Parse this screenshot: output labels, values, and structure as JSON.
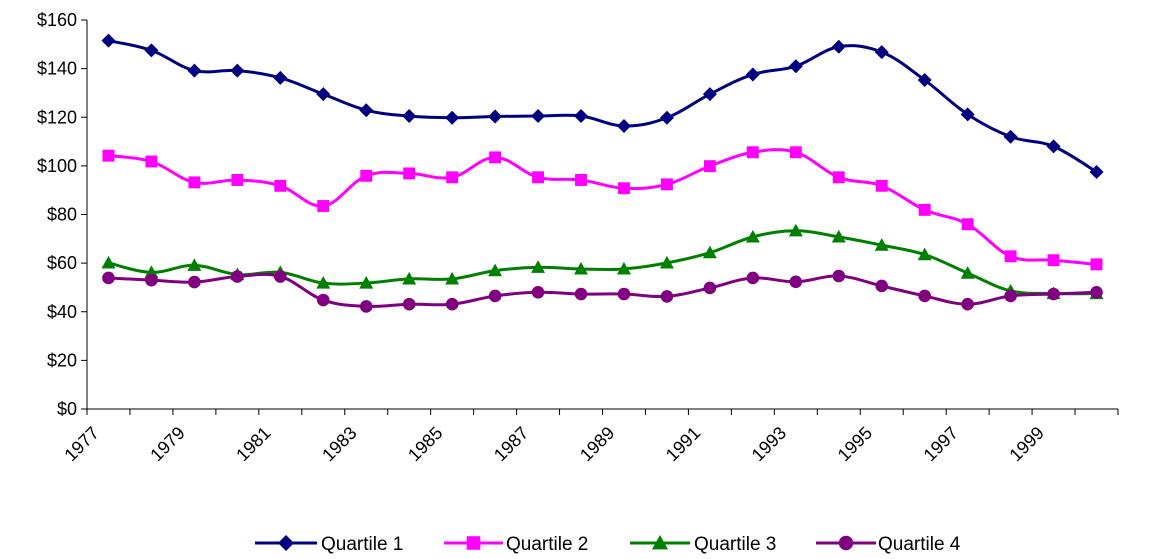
{
  "chart_data": {
    "type": "line",
    "title": "",
    "xlabel": "",
    "ylabel": "",
    "ylim": [
      0,
      160
    ],
    "yticks": [
      "$0",
      "$20",
      "$40",
      "$60",
      "$80",
      "$100",
      "$120",
      "$140",
      "$160"
    ],
    "xticks": [
      "1977",
      "1979",
      "1981",
      "1983",
      "1985",
      "1987",
      "1989",
      "1991",
      "1993",
      "1995",
      "1997",
      "1999"
    ],
    "x": [
      1977,
      1978,
      1979,
      1980,
      1981,
      1982,
      1983,
      1984,
      1985,
      1986,
      1987,
      1988,
      1989,
      1990,
      1991,
      1992,
      1993,
      1994,
      1995,
      1996,
      1997,
      1998,
      1999,
      2000
    ],
    "grid": false,
    "legend_position": "bottom",
    "series": [
      {
        "name": "Quartile 1",
        "color": "#000080",
        "marker": "diamond",
        "values": [
          151.5,
          147.5,
          139.2,
          139.2,
          136.2,
          129.5,
          122.9,
          120.5,
          119.8,
          120.3,
          120.5,
          120.5,
          116.4,
          119.8,
          129.5,
          137.6,
          141.0,
          149.0,
          146.8,
          135.3,
          121.2,
          112.0,
          108.0,
          97.5
        ]
      },
      {
        "name": "Quartile 2",
        "color": "#ff00ff",
        "marker": "square",
        "values": [
          104.2,
          101.8,
          93.2,
          94.2,
          91.8,
          83.5,
          95.9,
          96.9,
          95.3,
          103.5,
          95.3,
          94.2,
          90.8,
          92.4,
          99.9,
          105.6,
          105.6,
          95.3,
          91.8,
          81.9,
          76.0,
          62.8,
          61.2,
          59.5
        ]
      },
      {
        "name": "Quartile 3",
        "color": "#008000",
        "marker": "triangle",
        "values": [
          60.1,
          56.2,
          59.1,
          55.3,
          56.2,
          51.8,
          51.8,
          53.5,
          53.5,
          56.9,
          58.3,
          57.6,
          57.6,
          60.1,
          64.3,
          70.8,
          73.3,
          70.8,
          67.4,
          63.5,
          55.9,
          48.6,
          47.5,
          47.5
        ]
      },
      {
        "name": "Quartile 4",
        "color": "#800080",
        "marker": "circle",
        "values": [
          53.9,
          53.0,
          52.2,
          54.5,
          54.5,
          44.8,
          42.2,
          43.1,
          43.1,
          46.5,
          48.0,
          47.3,
          47.3,
          46.3,
          49.8,
          53.9,
          52.3,
          54.7,
          50.6,
          46.5,
          43.1,
          46.5,
          47.3,
          48.0
        ]
      }
    ]
  }
}
